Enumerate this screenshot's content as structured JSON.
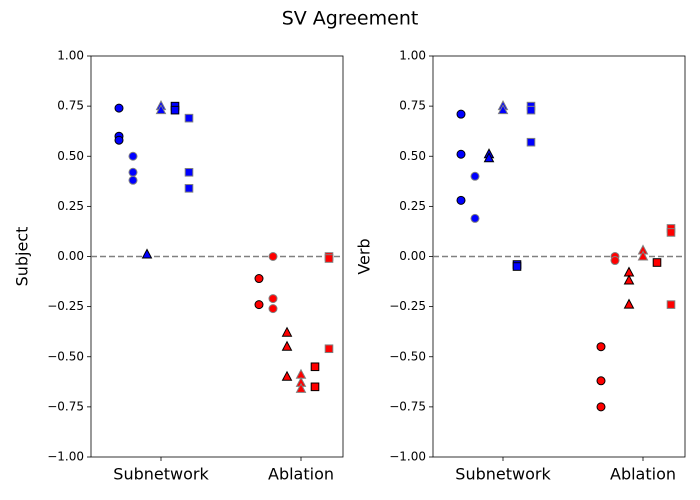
{
  "title": "SV Agreement",
  "chart_data": [
    {
      "type": "scatter",
      "ylabel": "Subject",
      "xlim": [
        -0.5,
        1.3
      ],
      "xticks": [
        {
          "value": 0,
          "label": "Subnetwork"
        },
        {
          "value": 1,
          "label": "Ablation"
        }
      ],
      "ylim": [
        -1,
        1
      ],
      "yticks": [
        {
          "value": -1,
          "label": "−1.00"
        },
        {
          "value": -0.75,
          "label": "−0.75"
        },
        {
          "value": -0.5,
          "label": "−0.50"
        },
        {
          "value": -0.25,
          "label": "−0.25"
        },
        {
          "value": 0,
          "label": "0.00"
        },
        {
          "value": 0.25,
          "label": "0.25"
        },
        {
          "value": 0.5,
          "label": "0.50"
        },
        {
          "value": 0.75,
          "label": "0.75"
        },
        {
          "value": 1,
          "label": "1.00"
        }
      ],
      "hline": 0,
      "series": [
        {
          "marker": "circle",
          "color": "#0000ff",
          "edgecolor": "#000000",
          "x": [
            -0.3,
            -0.3,
            -0.3
          ],
          "values": [
            0.74,
            0.6,
            0.58
          ]
        },
        {
          "marker": "circle",
          "color": "#0000ff",
          "edgecolor": "#808080",
          "x": [
            -0.2,
            -0.2,
            -0.2
          ],
          "values": [
            0.5,
            0.42,
            0.38
          ]
        },
        {
          "marker": "triangle",
          "color": "#0000ff",
          "edgecolor": "#000000",
          "x": [
            -0.1
          ],
          "values": [
            0.01
          ]
        },
        {
          "marker": "triangle",
          "color": "#0000ff",
          "edgecolor": "#808080",
          "x": [
            0,
            0
          ],
          "values": [
            0.75,
            0.73
          ]
        },
        {
          "marker": "square",
          "color": "#0000ff",
          "edgecolor": "#000000",
          "x": [
            0.1,
            0.1
          ],
          "values": [
            0.75,
            0.73
          ]
        },
        {
          "marker": "square",
          "color": "#0000ff",
          "edgecolor": "#808080",
          "x": [
            0.2,
            0.2,
            0.2
          ],
          "values": [
            0.69,
            0.42,
            0.34
          ]
        },
        {
          "marker": "circle",
          "color": "#ff0000",
          "edgecolor": "#000000",
          "x": [
            0.7,
            0.7
          ],
          "values": [
            -0.11,
            -0.24
          ]
        },
        {
          "marker": "circle",
          "color": "#ff0000",
          "edgecolor": "#808080",
          "x": [
            0.8,
            0.8,
            0.8
          ],
          "values": [
            0,
            -0.21,
            -0.26
          ]
        },
        {
          "marker": "triangle",
          "color": "#ff0000",
          "edgecolor": "#000000",
          "x": [
            0.9,
            0.9,
            0.9
          ],
          "values": [
            -0.38,
            -0.45,
            -0.6
          ]
        },
        {
          "marker": "triangle",
          "color": "#ff0000",
          "edgecolor": "#808080",
          "x": [
            1,
            1,
            1
          ],
          "values": [
            -0.59,
            -0.63,
            -0.66
          ]
        },
        {
          "marker": "square",
          "color": "#ff0000",
          "edgecolor": "#000000",
          "x": [
            1.1,
            1.1
          ],
          "values": [
            -0.55,
            -0.65
          ]
        },
        {
          "marker": "square",
          "color": "#ff0000",
          "edgecolor": "#808080",
          "x": [
            1.2,
            1.2,
            1.2
          ],
          "values": [
            0,
            -0.01,
            -0.46
          ]
        }
      ]
    },
    {
      "type": "scatter",
      "ylabel": "Verb",
      "xlim": [
        -0.5,
        1.3
      ],
      "xticks": [
        {
          "value": 0,
          "label": "Subnetwork"
        },
        {
          "value": 1,
          "label": "Ablation"
        }
      ],
      "ylim": [
        -1,
        1
      ],
      "yticks": [
        {
          "value": -1,
          "label": "−1.00"
        },
        {
          "value": -0.75,
          "label": "−0.75"
        },
        {
          "value": -0.5,
          "label": "−0.50"
        },
        {
          "value": -0.25,
          "label": "−0.25"
        },
        {
          "value": 0,
          "label": "0.00"
        },
        {
          "value": 0.25,
          "label": "0.25"
        },
        {
          "value": 0.5,
          "label": "0.50"
        },
        {
          "value": 0.75,
          "label": "0.75"
        },
        {
          "value": 1,
          "label": "1.00"
        }
      ],
      "hline": 0,
      "series": [
        {
          "marker": "circle",
          "color": "#0000ff",
          "edgecolor": "#000000",
          "x": [
            -0.3,
            -0.3,
            -0.3
          ],
          "values": [
            0.71,
            0.51,
            0.28
          ]
        },
        {
          "marker": "circle",
          "color": "#0000ff",
          "edgecolor": "#808080",
          "x": [
            -0.2,
            -0.2
          ],
          "values": [
            0.4,
            0.19
          ]
        },
        {
          "marker": "triangle",
          "color": "#0000ff",
          "edgecolor": "#000000",
          "x": [
            -0.1,
            -0.1
          ],
          "values": [
            0.51,
            0.49
          ]
        },
        {
          "marker": "triangle",
          "color": "#0000ff",
          "edgecolor": "#808080",
          "x": [
            0,
            0
          ],
          "values": [
            0.75,
            0.73
          ]
        },
        {
          "marker": "square",
          "color": "#0000ff",
          "edgecolor": "#000000",
          "x": [
            0.1,
            0.1
          ],
          "values": [
            -0.04,
            -0.05
          ]
        },
        {
          "marker": "square",
          "color": "#0000ff",
          "edgecolor": "#808080",
          "x": [
            0.2,
            0.2,
            0.2
          ],
          "values": [
            0.75,
            0.73,
            0.57
          ]
        },
        {
          "marker": "circle",
          "color": "#ff0000",
          "edgecolor": "#000000",
          "x": [
            0.7,
            0.7,
            0.7
          ],
          "values": [
            -0.45,
            -0.62,
            -0.75
          ]
        },
        {
          "marker": "circle",
          "color": "#ff0000",
          "edgecolor": "#808080",
          "x": [
            0.8,
            0.8
          ],
          "values": [
            0,
            -0.02
          ]
        },
        {
          "marker": "triangle",
          "color": "#ff0000",
          "edgecolor": "#000000",
          "x": [
            0.9,
            0.9,
            0.9
          ],
          "values": [
            -0.08,
            -0.12,
            -0.24
          ]
        },
        {
          "marker": "triangle",
          "color": "#ff0000",
          "edgecolor": "#808080",
          "x": [
            1,
            1
          ],
          "values": [
            0.03,
            0
          ]
        },
        {
          "marker": "square",
          "color": "#ff0000",
          "edgecolor": "#000000",
          "x": [
            1.1
          ],
          "values": [
            -0.03
          ]
        },
        {
          "marker": "square",
          "color": "#ff0000",
          "edgecolor": "#808080",
          "x": [
            1.2,
            1.2,
            1.2
          ],
          "values": [
            0.14,
            0.12,
            -0.24
          ]
        }
      ]
    }
  ]
}
